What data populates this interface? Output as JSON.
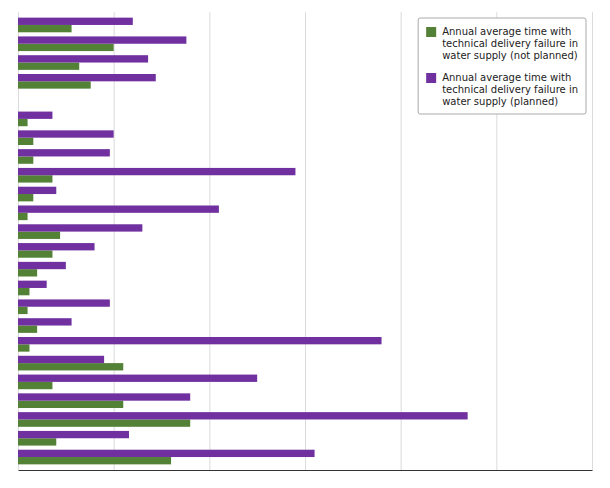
{
  "chart_data": {
    "type": "bar",
    "orientation": "horizontal",
    "categories": [
      null,
      null,
      null,
      null,
      null,
      null,
      null,
      null,
      null,
      null,
      null,
      null,
      null,
      null,
      null,
      null,
      null,
      null,
      null,
      null,
      null,
      null,
      null,
      null
    ],
    "series": [
      {
        "name": "Annual average time with\ntechnical delivery failure in\nwater supply (not planned)",
        "color": "#538135",
        "values": [
          28,
          50,
          32,
          38,
          0,
          5,
          8,
          8,
          18,
          8,
          5,
          22,
          18,
          10,
          6,
          5,
          10,
          6,
          55,
          18,
          55,
          90,
          20,
          80
        ]
      },
      {
        "name": "Annual average time with\ntechnical delivery failure in\nwater supply (planned)",
        "color": "#7030a0",
        "values": [
          60,
          88,
          68,
          72,
          0,
          18,
          50,
          48,
          145,
          20,
          105,
          65,
          40,
          25,
          15,
          48,
          28,
          190,
          45,
          125,
          90,
          235,
          58,
          155
        ]
      }
    ],
    "xlim": [
      0,
      300
    ],
    "xticks": [
      0,
      50,
      100,
      150,
      200,
      250,
      300
    ],
    "grid": true,
    "legend": "upper right",
    "tick_labels": false
  }
}
